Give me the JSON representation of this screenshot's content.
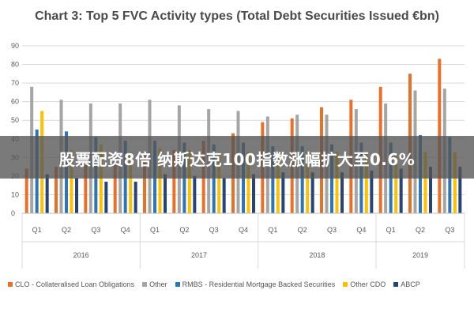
{
  "chart_data": {
    "type": "bar",
    "title": "Chart 3: Top 5 FVC Activity types (Total Debt Securities Issued €bn)",
    "quarters": [
      "Q1",
      "Q2",
      "Q3",
      "Q4",
      "Q1",
      "Q2",
      "Q3",
      "Q4",
      "Q1",
      "Q2",
      "Q3",
      "Q4",
      "Q1",
      "Q2",
      "Q3"
    ],
    "years": [
      {
        "label": "2016",
        "span": 4
      },
      {
        "label": "2017",
        "span": 4
      },
      {
        "label": "2018",
        "span": 4
      },
      {
        "label": "2019",
        "span": 3
      }
    ],
    "ylim": [
      0,
      90
    ],
    "yticks": [
      0,
      10,
      20,
      30,
      40,
      50,
      60,
      70,
      80,
      90
    ],
    "grid": true,
    "legend_position": "bottom",
    "series": [
      {
        "name": "CLO - Collateralised Loan Obligations",
        "color": "#e8702a",
        "values": [
          24,
          25,
          26,
          30,
          32,
          34,
          39,
          43,
          49,
          51,
          57,
          61,
          68,
          75,
          83
        ]
      },
      {
        "name": "Other",
        "color": "#a5a5a5",
        "values": [
          68,
          61,
          59,
          59,
          61,
          58,
          56,
          55,
          52,
          53,
          53,
          56,
          59,
          66,
          67
        ]
      },
      {
        "name": "RMBS - Residential Mortgage Backed Securities",
        "color": "#2e75b6",
        "values": [
          45,
          44,
          41,
          39,
          39,
          38,
          37,
          38,
          36,
          36,
          37,
          38,
          38,
          42,
          41
        ]
      },
      {
        "name": "Other CDO",
        "color": "#ffc000",
        "values": [
          55,
          34,
          37,
          33,
          35,
          34,
          33,
          33,
          32,
          33,
          33,
          32,
          32,
          33,
          33
        ]
      },
      {
        "name": "ABCP",
        "color": "#264478",
        "values": [
          21,
          19,
          17,
          17,
          21,
          20,
          19,
          21,
          22,
          22,
          22,
          23,
          24,
          25,
          25
        ]
      }
    ]
  },
  "overlay": {
    "text": "股票配资8倍 纳斯达克100指数涨幅扩大至0.6%"
  }
}
